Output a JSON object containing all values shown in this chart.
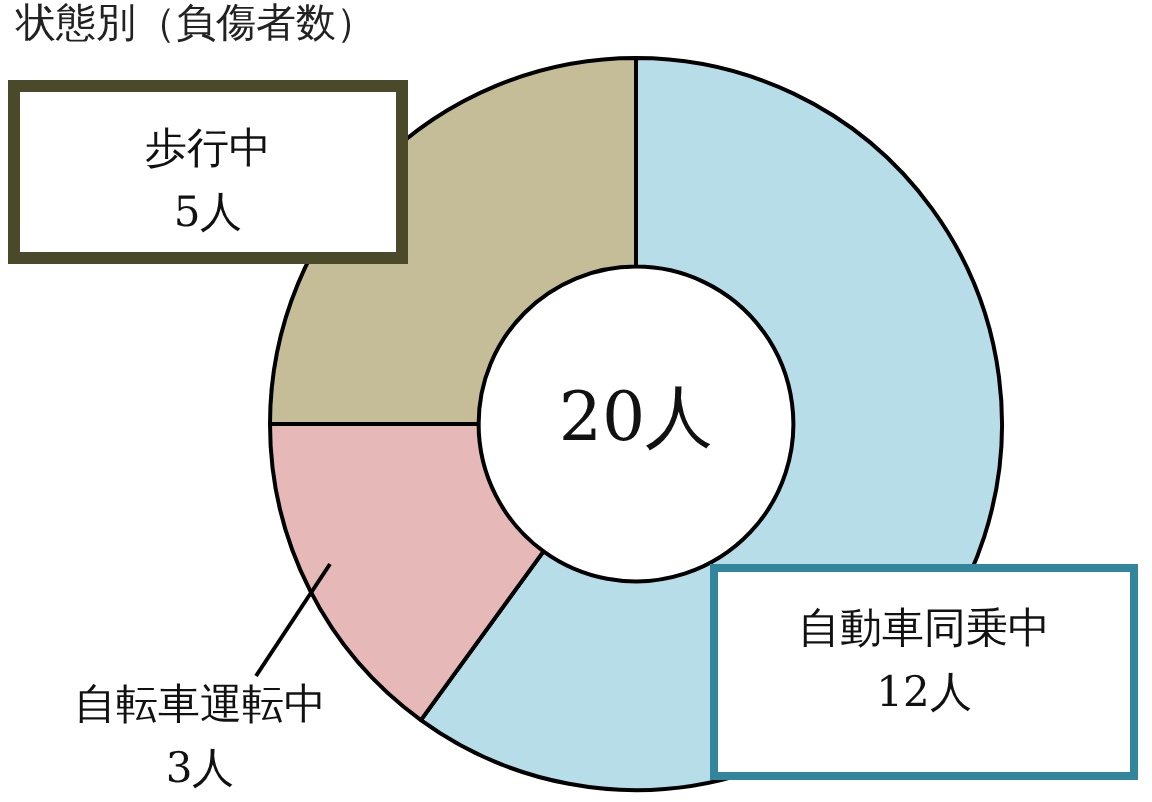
{
  "chart_data": {
    "type": "donut",
    "title": "状態別（負傷者数）",
    "categories": [
      "自動車同乗中",
      "自転車運転中",
      "歩行中"
    ],
    "values": [
      12,
      3,
      5
    ],
    "value_labels": [
      "12人",
      "3人",
      "5人"
    ],
    "colors": [
      "#b7dde8",
      "#e6b9b8",
      "#c4bd97"
    ],
    "annotations": [
      "20人"
    ],
    "legend": false
  }
}
